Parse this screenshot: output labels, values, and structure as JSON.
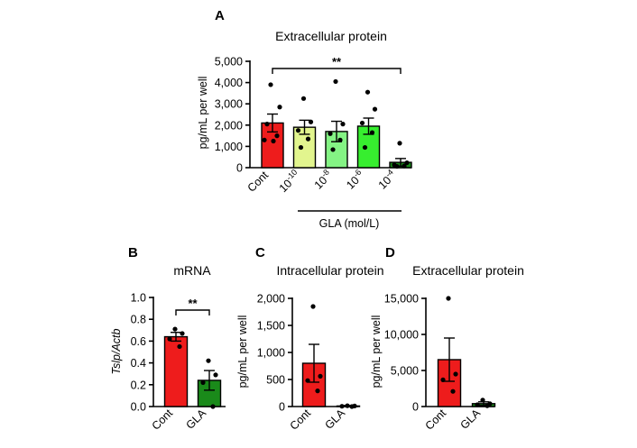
{
  "chart_data": [
    {
      "id": "A",
      "type": "bar",
      "panel_label": "A",
      "title": "Extracellular protein",
      "ylabel": "pg/mL per well",
      "ylim": [
        0,
        5000
      ],
      "yticks": [
        0,
        1000,
        2000,
        3000,
        4000,
        5000
      ],
      "ytick_labels": [
        "0",
        "1,000",
        "2,000",
        "3,000",
        "4,000",
        "5,000"
      ],
      "categories": [
        {
          "base": "Cont",
          "sup": ""
        },
        {
          "base": "10",
          "sup": "-10"
        },
        {
          "base": "10",
          "sup": "-8"
        },
        {
          "base": "10",
          "sup": "-6"
        },
        {
          "base": "10",
          "sup": "-4"
        }
      ],
      "values": [
        2100,
        1900,
        1700,
        1950,
        250
      ],
      "errors": [
        420,
        330,
        480,
        380,
        180
      ],
      "colors": [
        "#ee1c1c",
        "#e2f58e",
        "#84f384",
        "#37ee2f",
        "#1a8a1a"
      ],
      "points": [
        [
          3900,
          2850,
          2050,
          1500,
          1300,
          1250
        ],
        [
          3250,
          2150,
          1750,
          1350,
          950
        ],
        [
          4050,
          2050,
          1600,
          1300,
          850
        ],
        [
          3550,
          2750,
          2100,
          1650,
          950
        ],
        [
          1150,
          230,
          130,
          80,
          60
        ]
      ],
      "group_label": "GLA (mol/L)",
      "significance": {
        "from": 0,
        "to": 4,
        "label": "**"
      }
    },
    {
      "id": "B",
      "type": "bar",
      "panel_label": "B",
      "title": "mRNA",
      "ylabel": "Tslp/Actb",
      "ylim": [
        0,
        1.0
      ],
      "yticks": [
        0,
        0.2,
        0.4,
        0.6,
        0.8,
        1.0
      ],
      "ytick_labels": [
        "0.0",
        "0.2",
        "0.4",
        "0.6",
        "0.8",
        "1.0"
      ],
      "categories": [
        {
          "base": "Cont",
          "sup": ""
        },
        {
          "base": "GLA",
          "sup": ""
        }
      ],
      "values": [
        0.64,
        0.24
      ],
      "errors": [
        0.04,
        0.09
      ],
      "colors": [
        "#ee1c1c",
        "#1a8a1a"
      ],
      "points": [
        [
          0.71,
          0.67,
          0.62,
          0.55
        ],
        [
          0.42,
          0.29,
          0.22,
          0.0
        ]
      ],
      "significance": {
        "from": 0,
        "to": 1,
        "label": "**"
      }
    },
    {
      "id": "C",
      "type": "bar",
      "panel_label": "C",
      "title": "Intracellular protein",
      "ylabel": "pg/mL per well",
      "ylim": [
        0,
        2000
      ],
      "yticks": [
        0,
        500,
        1000,
        1500,
        2000
      ],
      "ytick_labels": [
        "0",
        "500",
        "1,000",
        "1,500",
        "2,000"
      ],
      "categories": [
        {
          "base": "Cont",
          "sup": ""
        },
        {
          "base": "GLA",
          "sup": ""
        }
      ],
      "values": [
        800,
        10
      ],
      "errors": [
        350,
        10
      ],
      "colors": [
        "#ee1c1c",
        "#1a8a1a"
      ],
      "points": [
        [
          1850,
          560,
          480,
          290
        ],
        [
          15,
          10,
          5,
          0
        ]
      ]
    },
    {
      "id": "D",
      "type": "bar",
      "panel_label": "D",
      "title": "Extracellular protein",
      "ylabel": "pg/mL per well",
      "ylim": [
        0,
        15000
      ],
      "yticks": [
        0,
        5000,
        10000,
        15000
      ],
      "ytick_labels": [
        "0",
        "5,000",
        "10,000",
        "15,000"
      ],
      "categories": [
        {
          "base": "Cont",
          "sup": ""
        },
        {
          "base": "GLA",
          "sup": ""
        }
      ],
      "values": [
        6500,
        400
      ],
      "errors": [
        3000,
        250
      ],
      "colors": [
        "#ee1c1c",
        "#1a8a1a"
      ],
      "points": [
        [
          15000,
          4500,
          3700,
          2100
        ],
        [
          900,
          400,
          250,
          100
        ]
      ]
    }
  ]
}
